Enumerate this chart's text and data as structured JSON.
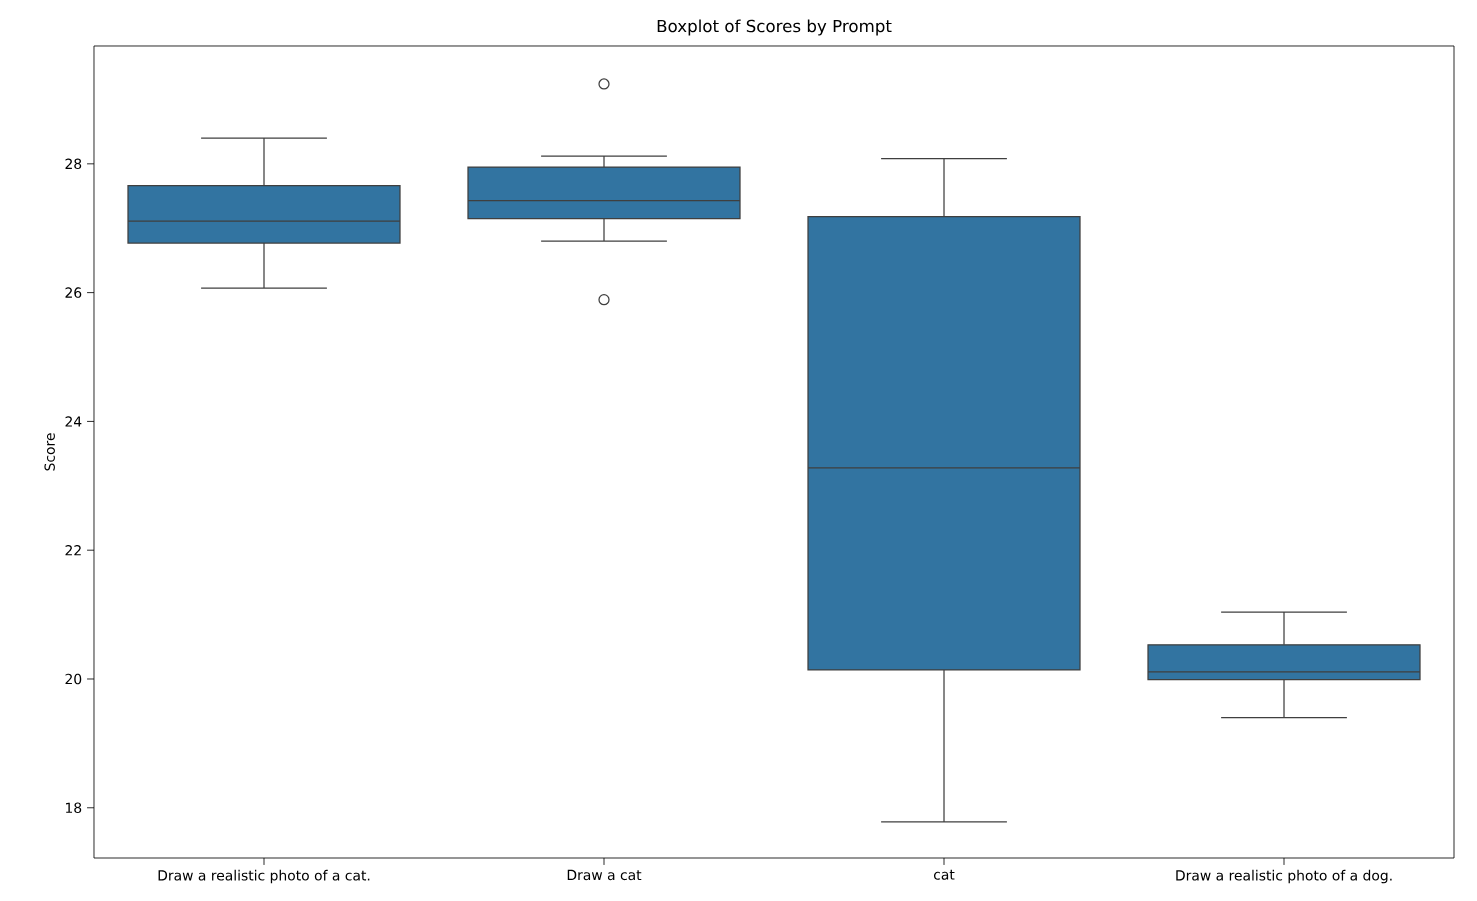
{
  "chart_data": {
    "type": "box",
    "title": "Boxplot of Scores by Prompt",
    "ylabel": "Score",
    "categories": [
      "Draw a realistic photo of a cat.",
      "Draw a cat",
      "cat",
      "Draw a realistic photo of a dog."
    ],
    "color": "#3274a1",
    "boxes": [
      {
        "low": 26.07,
        "q1": 26.77,
        "median": 27.11,
        "q3": 27.66,
        "high": 28.4
      },
      {
        "low": 26.8,
        "q1": 27.15,
        "median": 27.43,
        "q3": 27.95,
        "high": 28.12,
        "outliers": [
          29.24,
          25.89
        ]
      },
      {
        "low": 17.78,
        "q1": 20.14,
        "median": 23.28,
        "q3": 27.18,
        "high": 28.08
      },
      {
        "low": 19.4,
        "q1": 19.99,
        "median": 20.11,
        "q3": 20.53,
        "high": 21.04
      }
    ],
    "ylim": [
      17.22,
      29.83
    ],
    "yticks": [
      18,
      20,
      22,
      24,
      26,
      28
    ]
  }
}
